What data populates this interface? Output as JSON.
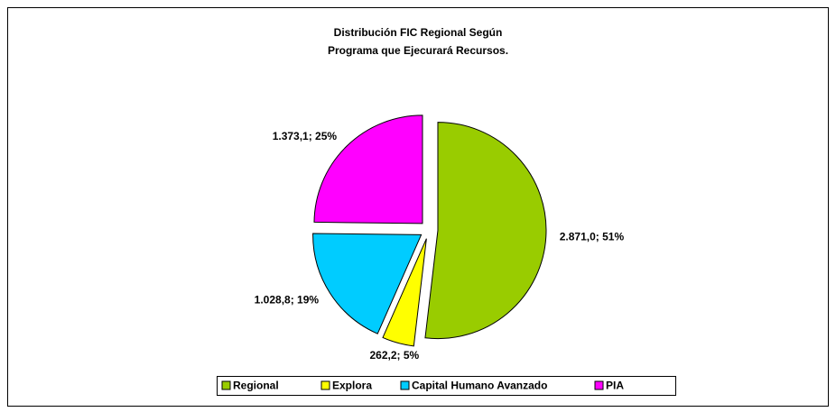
{
  "chart_data": {
    "type": "pie",
    "title": [
      "Distribución FIC Regional Según",
      "Programa que Ejecurará Recursos."
    ],
    "categories": [
      "Regional",
      "Explora",
      "Capital Humano Avanzado",
      "PIA"
    ],
    "values": [
      2871.0,
      262.2,
      1028.8,
      1373.1
    ],
    "value_labels": [
      "2.871,0; 51%",
      "262,2; 5%",
      "1.028,8; 19%",
      "1.373,1; 25%"
    ],
    "colors": [
      "#99cc00",
      "#ffff00",
      "#00ccff",
      "#ff00ff"
    ],
    "legend": "bottom"
  }
}
